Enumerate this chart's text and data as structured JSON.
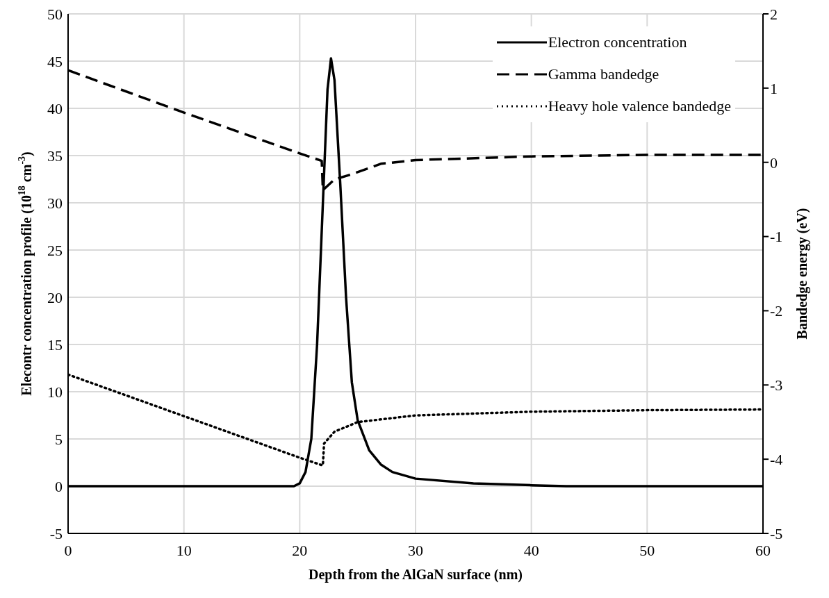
{
  "chart_data": {
    "type": "line",
    "xlabel": "Depth from the AlGaN surface (nm)",
    "ylabel": "Elecontr concentration profile (10$^{18}$ cm$^{-3}$)",
    "y2label": "Bandedge energy (eV)",
    "xlim": [
      0,
      60
    ],
    "xticks": [
      0,
      10,
      20,
      30,
      40,
      50,
      60
    ],
    "ylim": [
      -5,
      50
    ],
    "yticks": [
      -5,
      0,
      5,
      10,
      15,
      20,
      25,
      30,
      35,
      40,
      45,
      50
    ],
    "y2lim": [
      -5,
      2
    ],
    "y2ticks": [
      -5,
      -4,
      -3,
      -2,
      -1,
      0,
      1,
      2
    ],
    "grid": true,
    "legend": "top right",
    "marker": "none",
    "series": [
      {
        "name": "Electron concentration",
        "color": "#000000",
        "line_style": "solid",
        "x": [
          0,
          10,
          19,
          19.5,
          20,
          20.5,
          21,
          21.5,
          22,
          22.4,
          22.7,
          23,
          23.5,
          24,
          24.5,
          25,
          26,
          27,
          28,
          30,
          35,
          40,
          43,
          43.5,
          50,
          60
        ],
        "values": [
          0,
          0,
          0,
          0,
          0.3,
          1.5,
          5,
          15,
          30,
          42,
          45.3,
          43,
          32,
          20,
          11,
          7,
          3.8,
          2.3,
          1.5,
          0.8,
          0.3,
          0.1,
          0,
          0,
          0,
          0
        ]
      },
      {
        "name": "Gamma bandedge",
        "color": "#000000",
        "line_style": "dashed",
        "axis": "y2",
        "x": [
          0,
          10,
          20,
          21.9,
          22,
          22.1,
          23,
          24.5,
          27,
          30,
          40,
          50,
          60
        ],
        "values": [
          1.24,
          0.67,
          0.12,
          0.02,
          -0.38,
          -0.36,
          -0.23,
          -0.16,
          -0.02,
          0.03,
          0.08,
          0.1,
          0.1
        ]
      },
      {
        "name": "Heavy hole valence bandedge",
        "color": "#000000",
        "line_style": "dotted",
        "axis": "y2",
        "x": [
          0,
          10,
          20,
          21.9,
          22,
          22.1,
          23,
          25,
          30,
          40,
          50,
          60
        ],
        "values": [
          -2.86,
          -3.42,
          -3.98,
          -4.08,
          -4.08,
          -3.79,
          -3.63,
          -3.5,
          -3.41,
          -3.36,
          -3.34,
          -3.33
        ]
      }
    ]
  }
}
